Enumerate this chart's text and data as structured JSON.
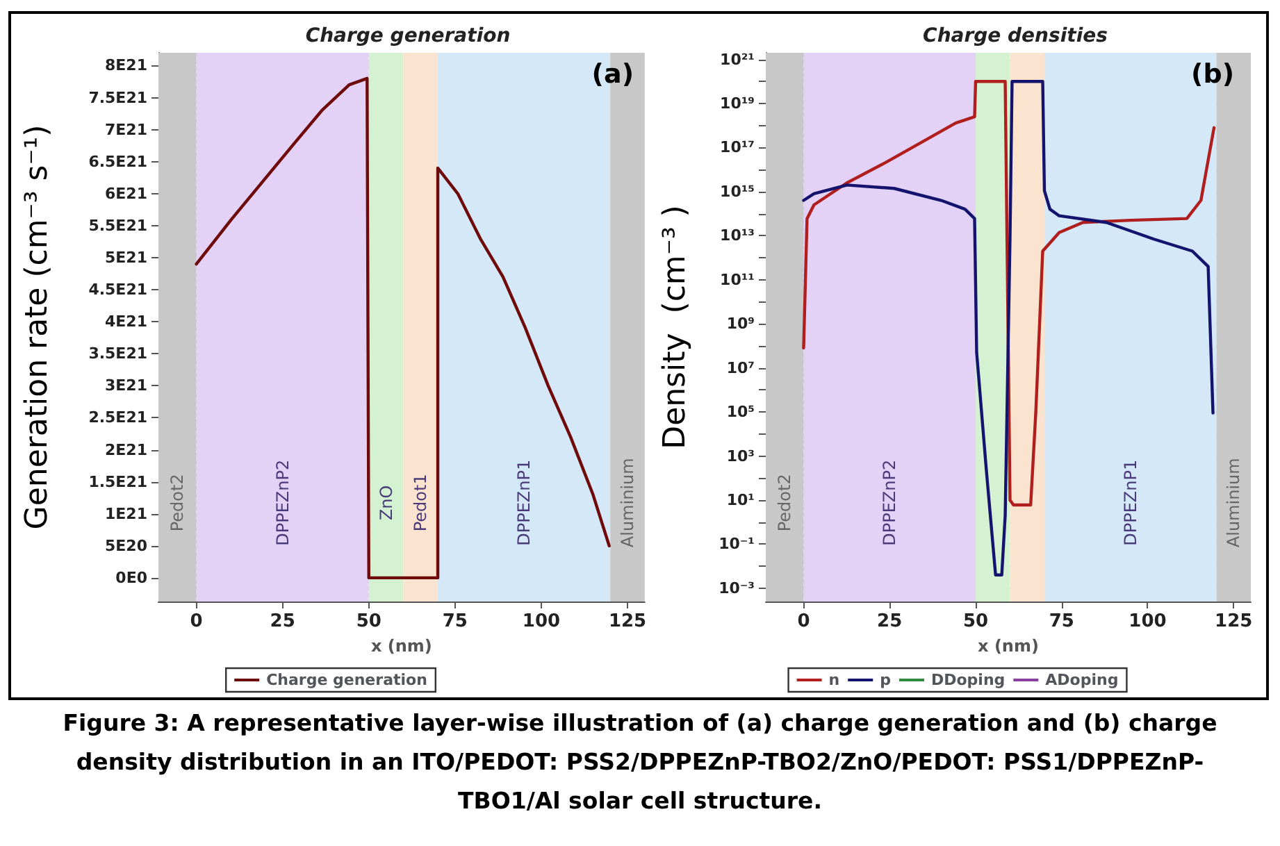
{
  "chart_data": [
    {
      "type": "line",
      "title": "Charge generation",
      "xlabel": "x (nm)",
      "ylabel": "Generation rate (cm⁻³ s⁻¹)",
      "annotations": [
        "(a)",
        "Figure 3: A representative layer-wise illustration of (a) charge generation and (b) charge density distribution in an ITO/PEDOT: PSS2/DPPEZnP-TBO2/ZnO/PEDOT: PSS1/DPPEZnP-TBO1/Al solar cell structure."
      ],
      "xlim": [
        -11,
        130
      ],
      "xticks": [
        0,
        25,
        50,
        75,
        100,
        125
      ],
      "ylim": [
        -3.7e+20,
        8.2e+21
      ],
      "yticks": [
        {
          "value": 0,
          "label": "0E0"
        },
        {
          "value": 5e+20,
          "label": "5E20"
        },
        {
          "value": 1e+21,
          "label": "1E21"
        },
        {
          "value": 1.5e+21,
          "label": "1.5E21"
        },
        {
          "value": 2e+21,
          "label": "2E21"
        },
        {
          "value": 2.5e+21,
          "label": "2.5E21"
        },
        {
          "value": 3e+21,
          "label": "3E21"
        },
        {
          "value": 3.5e+21,
          "label": "3.5E21"
        },
        {
          "value": 4e+21,
          "label": "4E21"
        },
        {
          "value": 4.5e+21,
          "label": "4.5E21"
        },
        {
          "value": 5e+21,
          "label": "5E21"
        },
        {
          "value": 5.5e+21,
          "label": "5.5E21"
        },
        {
          "value": 6e+21,
          "label": "6E21"
        },
        {
          "value": 6.5e+21,
          "label": "6.5E21"
        },
        {
          "value": 7e+21,
          "label": "7E21"
        },
        {
          "value": 7.5e+21,
          "label": "7.5E21"
        },
        {
          "value": 8e+21,
          "label": "8E21"
        }
      ],
      "bands": [
        {
          "axis": "x",
          "from": -11,
          "to": 0,
          "label": "Pedot2",
          "color": "#c8c8c8"
        },
        {
          "axis": "x",
          "from": 0,
          "to": 50,
          "label": "DPPEZnP2",
          "color": "#e4d2f6"
        },
        {
          "axis": "x",
          "from": 50,
          "to": 60,
          "label": "ZnO",
          "color": "#d4f2d2"
        },
        {
          "axis": "x",
          "from": 60,
          "to": 70,
          "label": "Pedot1",
          "color": "#fbe4cf"
        },
        {
          "axis": "x",
          "from": 70,
          "to": 120,
          "label": "DPPEZnP1",
          "color": "#d4e8f8"
        },
        {
          "axis": "x",
          "from": 120,
          "to": 130,
          "label": "Aluminium",
          "color": "#c8c8c8"
        }
      ],
      "grid": true,
      "legend": "bottom",
      "marker": "none",
      "line_style": "solid",
      "series": [
        {
          "name": "Charge generation",
          "color": "#6e0a0a",
          "x": [
            0,
            10.2,
            19.4,
            28.6,
            36.4,
            44.3,
            49.5,
            50,
            70,
            70,
            75.8,
            82.3,
            88.9,
            95.4,
            102,
            108.5,
            115,
            119.7
          ],
          "values": [
            4.9e+21,
            5.6e+21,
            6.2e+21,
            6.8e+21,
            7.3e+21,
            7.7e+21,
            7.8e+21,
            0,
            0,
            6.4e+21,
            6e+21,
            5.3e+21,
            4.7e+21,
            3.9e+21,
            3e+21,
            2.2e+21,
            1.3e+21,
            5e+20
          ]
        }
      ]
    },
    {
      "type": "line",
      "title": "Charge densities",
      "xlabel": "x (nm)",
      "ylabel": "Density  (cm⁻³ )",
      "log": "y",
      "annotations": [
        "(b)"
      ],
      "xlim": [
        -11,
        130
      ],
      "xticks": [
        0,
        25,
        50,
        75,
        100,
        125
      ],
      "ylim": [
        0.00025,
        2e+21
      ],
      "yticks": [
        {
          "value": 0.001,
          "label": "10⁻³"
        },
        {
          "value": 0.01,
          "label": null
        },
        {
          "value": 0.1,
          "label": "10⁻¹"
        },
        {
          "value": 1,
          "label": null
        },
        {
          "value": 10,
          "label": "10¹"
        },
        {
          "value": 100,
          "label": null
        },
        {
          "value": 1000.0,
          "label": "10³"
        },
        {
          "value": 10000.0,
          "label": null
        },
        {
          "value": 100000.0,
          "label": "10⁵"
        },
        {
          "value": 1000000.0,
          "label": null
        },
        {
          "value": 10000000.0,
          "label": "10⁷"
        },
        {
          "value": 100000000.0,
          "label": null
        },
        {
          "value": 1000000000.0,
          "label": "10⁹"
        },
        {
          "value": 10000000000.0,
          "label": null
        },
        {
          "value": 100000000000.0,
          "label": "10¹¹"
        },
        {
          "value": 1000000000000.0,
          "label": null
        },
        {
          "value": 10000000000000.0,
          "label": "10¹³"
        },
        {
          "value": 100000000000000.0,
          "label": null
        },
        {
          "value": 1000000000000000.0,
          "label": "10¹⁵"
        },
        {
          "value": 1e+16,
          "label": null
        },
        {
          "value": 1e+17,
          "label": "10¹⁷"
        },
        {
          "value": 1e+18,
          "label": null
        },
        {
          "value": 1e+19,
          "label": "10¹⁹"
        },
        {
          "value": 1e+20,
          "label": null
        },
        {
          "value": 1e+21,
          "label": "10²¹"
        }
      ],
      "bands": [
        {
          "axis": "x",
          "from": -11,
          "to": 0,
          "label": "Pedot2",
          "color": "#c8c8c8"
        },
        {
          "axis": "x",
          "from": 0,
          "to": 50,
          "label": "DPPEZnP2",
          "color": "#e4d2f6"
        },
        {
          "axis": "x",
          "from": 50,
          "to": 60,
          "color": "#d4f2d2"
        },
        {
          "axis": "x",
          "from": 60,
          "to": 70,
          "color": "#fbe4cf"
        },
        {
          "axis": "x",
          "from": 70,
          "to": 120,
          "label": "DPPEZnP1",
          "color": "#d4e8f8"
        },
        {
          "axis": "x",
          "from": 120,
          "to": 130,
          "label": "Aluminium",
          "color": "#c8c8c8"
        }
      ],
      "grid": true,
      "legend": "bottom",
      "marker": "none",
      "line_style": "solid",
      "series": [
        {
          "name": "n",
          "color": "#b01e1e",
          "x": [
            0,
            1,
            3,
            12.6,
            23.6,
            33.2,
            44.2,
            49.7,
            50,
            58.6,
            60,
            61,
            66,
            67.5,
            69.5,
            74.3,
            81.2,
            95,
            111.4,
            115.5,
            119.3
          ],
          "values": [
            80000000.0,
            60000000000000.0,
            250000000000000.0,
            2500000000000000.0,
            2e+16,
            1.4e+17,
            1.3e+18,
            2.5e+18,
            1e+20,
            1e+20,
            10,
            6,
            6,
            100000.0,
            2000000000000.0,
            14000000000000.0,
            40000000000000.0,
            50000000000000.0,
            60000000000000.0,
            400000000000000.0,
            8e+17
          ]
        },
        {
          "name": "p",
          "color": "#14146e",
          "x": [
            0,
            3,
            12.6,
            26.3,
            40,
            46.9,
            49.7,
            50.3,
            53.1,
            55.8,
            57.6,
            58.6,
            60,
            60.6,
            69.5,
            70,
            71.6,
            74.3,
            88,
            101.8,
            113,
            117.6,
            119
          ],
          "values": [
            400000000000000.0,
            800000000000000.0,
            2000000000000000.0,
            1400000000000000.0,
            400000000000000.0,
            160000000000000.0,
            60000000000000.0,
            50000000.0,
            250,
            0.004,
            0.004,
            2,
            8000000000000.0,
            1e+20,
            1e+20,
            1100000000000000.0,
            160000000000000.0,
            80000000000000.0,
            40000000000000.0,
            7000000000000.0,
            2000000000000.0,
            400000000000.0,
            90000.0
          ]
        },
        {
          "name": "DDoping",
          "color": "#2e8b3e"
        },
        {
          "name": "ADoping",
          "color": "#8a3fa0"
        }
      ]
    }
  ]
}
